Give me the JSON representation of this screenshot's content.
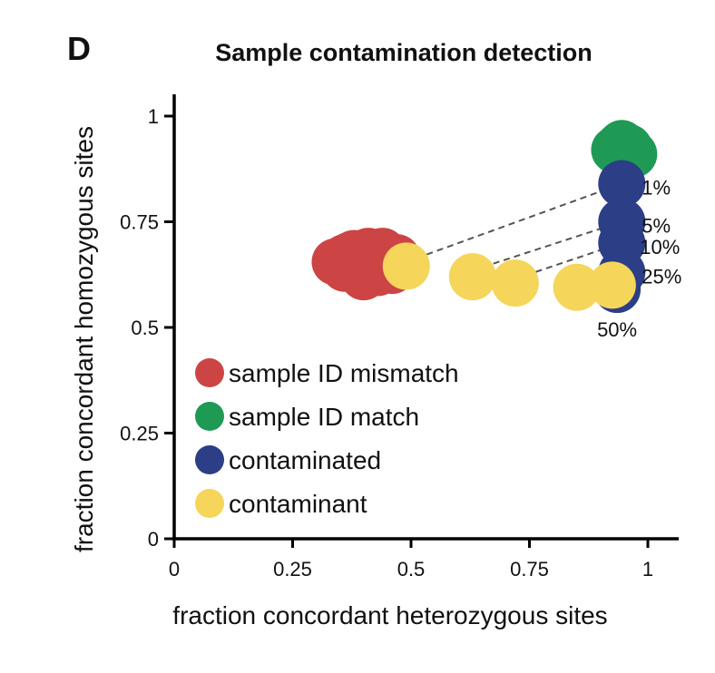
{
  "panel_letter": "D",
  "chart_data": {
    "type": "scatter",
    "title": "Sample contamination detection",
    "xlabel": "fraction concordant heterozygous sites",
    "ylabel": "fraction concordant homozygous sites",
    "xlim": [
      0,
      1.05
    ],
    "ylim": [
      0,
      1.02
    ],
    "x_ticks": [
      {
        "value": 0,
        "label": "0"
      },
      {
        "value": 0.25,
        "label": "0.25"
      },
      {
        "value": 0.5,
        "label": "0.5"
      },
      {
        "value": 0.75,
        "label": "0.75"
      },
      {
        "value": 1,
        "label": "1"
      }
    ],
    "y_ticks": [
      {
        "value": 0,
        "label": "0"
      },
      {
        "value": 0.25,
        "label": "0.25"
      },
      {
        "value": 0.5,
        "label": "0.5"
      },
      {
        "value": 0.75,
        "label": "0.75"
      },
      {
        "value": 1,
        "label": "1"
      }
    ],
    "grid": false,
    "legend_position": "bottom-left",
    "series": [
      {
        "name": "sample ID mismatch",
        "color": "#CC4444",
        "points": [
          {
            "x": 0.34,
            "y": 0.655
          },
          {
            "x": 0.36,
            "y": 0.64
          },
          {
            "x": 0.37,
            "y": 0.67
          },
          {
            "x": 0.38,
            "y": 0.65
          },
          {
            "x": 0.39,
            "y": 0.63
          },
          {
            "x": 0.4,
            "y": 0.66
          },
          {
            "x": 0.4,
            "y": 0.62
          },
          {
            "x": 0.41,
            "y": 0.68
          },
          {
            "x": 0.42,
            "y": 0.645
          },
          {
            "x": 0.43,
            "y": 0.665
          },
          {
            "x": 0.43,
            "y": 0.63
          },
          {
            "x": 0.44,
            "y": 0.68
          },
          {
            "x": 0.45,
            "y": 0.65
          },
          {
            "x": 0.46,
            "y": 0.635
          },
          {
            "x": 0.47,
            "y": 0.665
          },
          {
            "x": 0.36,
            "y": 0.665
          },
          {
            "x": 0.38,
            "y": 0.675
          },
          {
            "x": 0.41,
            "y": 0.64
          }
        ]
      },
      {
        "name": "sample ID match",
        "color": "#1E9A55",
        "points": [
          {
            "x": 0.93,
            "y": 0.92
          },
          {
            "x": 0.94,
            "y": 0.93
          },
          {
            "x": 0.95,
            "y": 0.915
          },
          {
            "x": 0.96,
            "y": 0.925
          },
          {
            "x": 0.95,
            "y": 0.9
          },
          {
            "x": 0.94,
            "y": 0.91
          },
          {
            "x": 0.97,
            "y": 0.91
          },
          {
            "x": 0.945,
            "y": 0.935
          }
        ]
      },
      {
        "name": "contaminated",
        "color": "#2C3E85",
        "points": [
          {
            "x": 0.945,
            "y": 0.84,
            "label": "1%"
          },
          {
            "x": 0.945,
            "y": 0.75,
            "label": "5%"
          },
          {
            "x": 0.945,
            "y": 0.7,
            "label": "10%"
          },
          {
            "x": 0.945,
            "y": 0.63,
            "label": "25%"
          },
          {
            "x": 0.935,
            "y": 0.59,
            "label": "50%"
          }
        ]
      },
      {
        "name": "contaminant",
        "color": "#F5D55A",
        "points": [
          {
            "x": 0.49,
            "y": 0.645
          },
          {
            "x": 0.63,
            "y": 0.62
          },
          {
            "x": 0.72,
            "y": 0.605
          },
          {
            "x": 0.85,
            "y": 0.595
          },
          {
            "x": 0.925,
            "y": 0.6
          }
        ]
      }
    ],
    "connectors": [
      {
        "from": {
          "x": 0.49,
          "y": 0.655
        },
        "to": {
          "x": 0.945,
          "y": 0.84
        }
      },
      {
        "from": {
          "x": 0.63,
          "y": 0.635
        },
        "to": {
          "x": 0.945,
          "y": 0.75
        }
      },
      {
        "from": {
          "x": 0.72,
          "y": 0.615
        },
        "to": {
          "x": 0.945,
          "y": 0.7
        }
      }
    ],
    "legend": [
      {
        "label": "sample ID mismatch",
        "color": "#CC4444"
      },
      {
        "label": "sample ID match",
        "color": "#1E9A55"
      },
      {
        "label": "contaminated",
        "color": "#2C3E85"
      },
      {
        "label": "contaminant",
        "color": "#F5D55A"
      }
    ]
  }
}
